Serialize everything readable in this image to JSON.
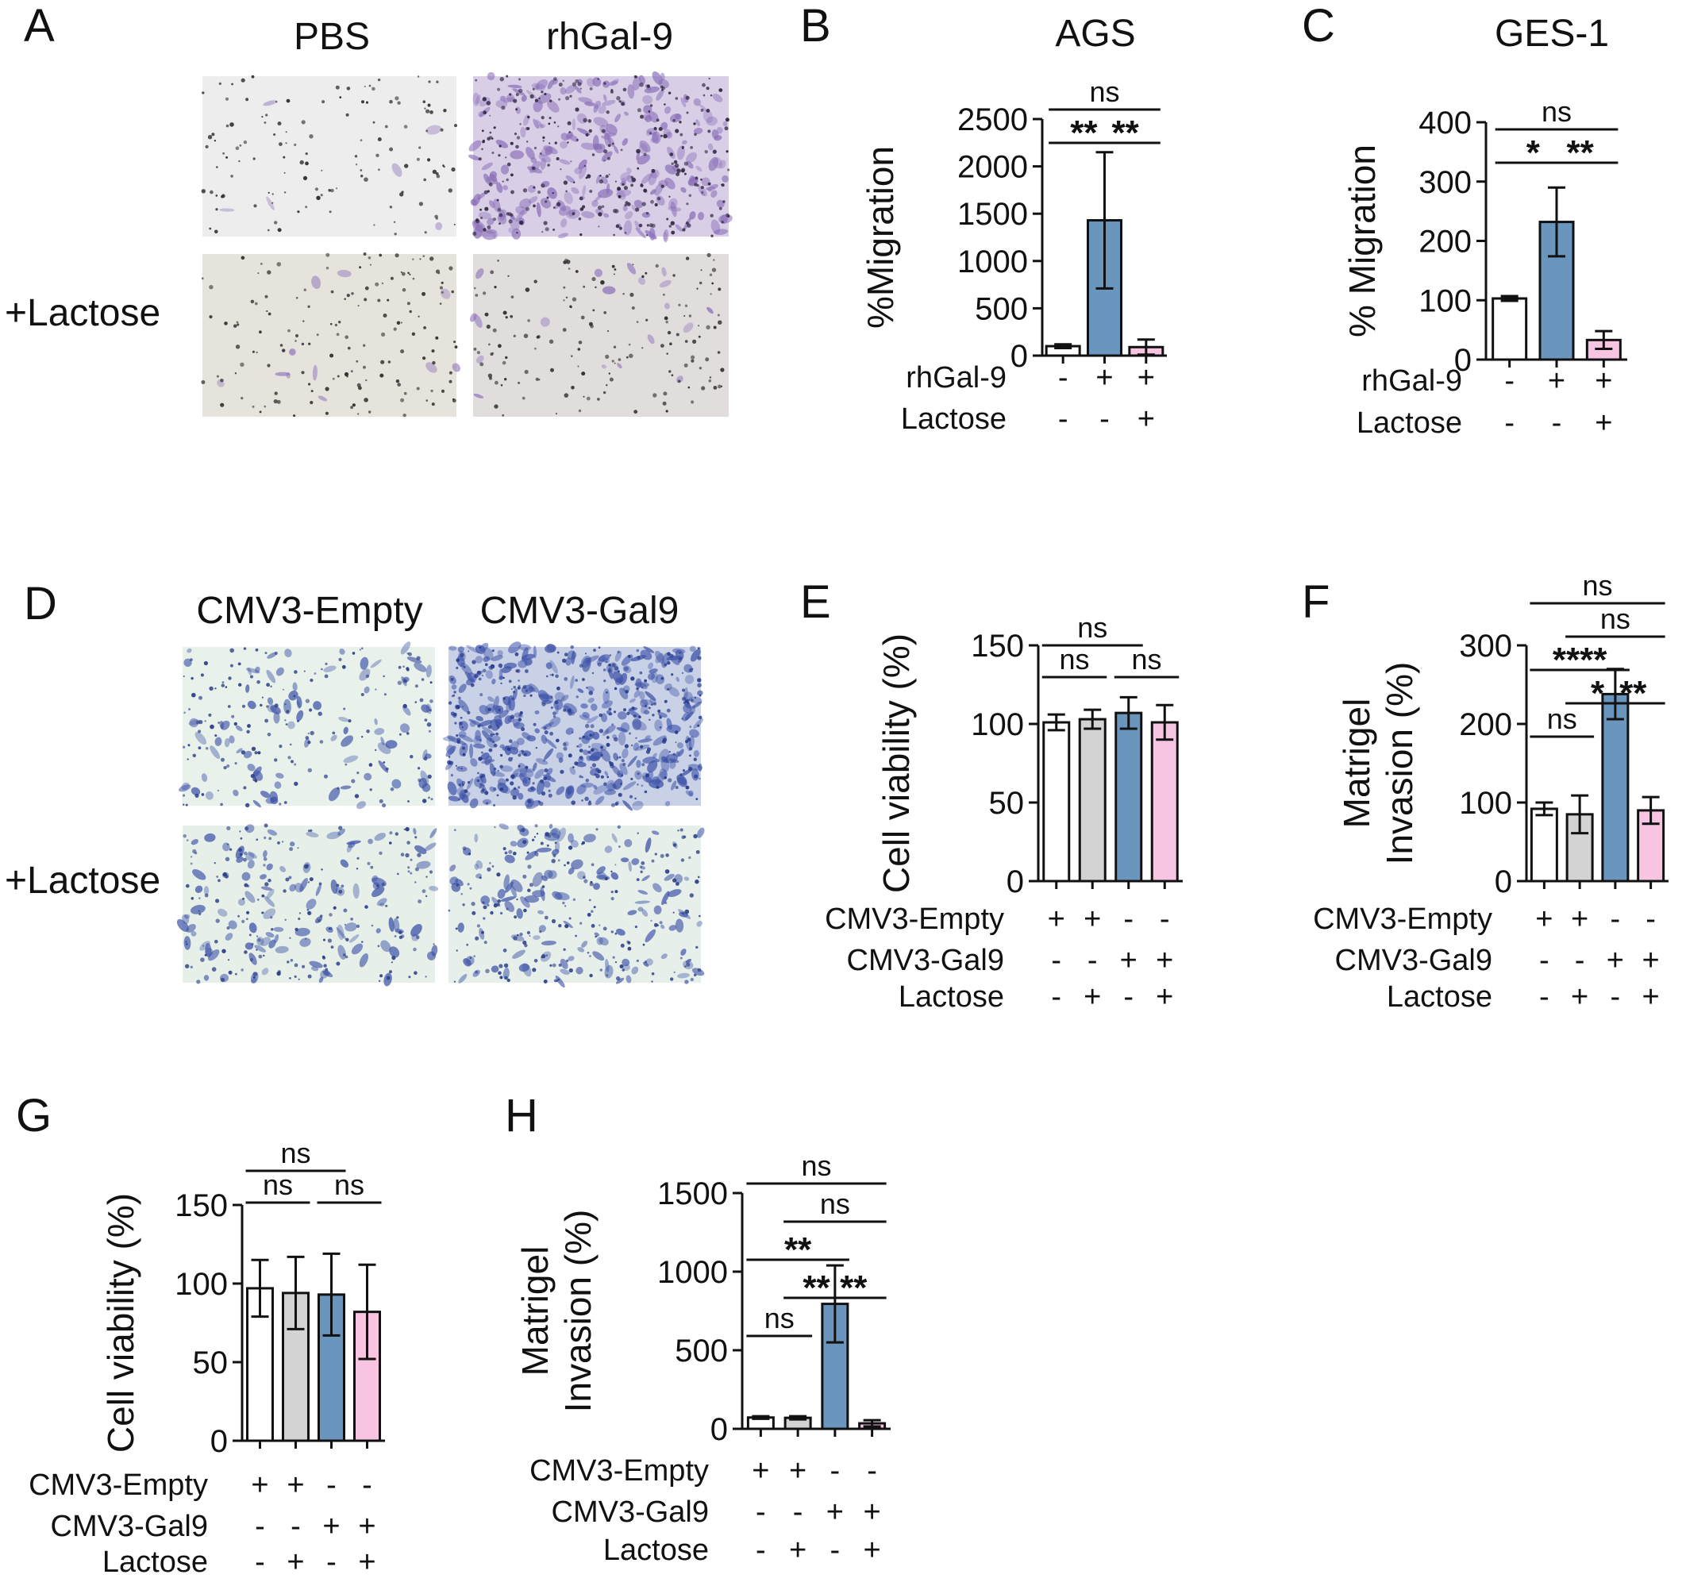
{
  "colors": {
    "white_bar": "#ffffff",
    "gray_bar": "#d3d3d3",
    "blue_bar": "#6a95bd",
    "pink_bar": "#f7c4e2",
    "axis": "#111111",
    "crystal_violet": "#8a6fb8",
    "stain_blue": "#3d52a8"
  },
  "micrographs": [
    {
      "panel": "A",
      "column_titles": [
        "PBS",
        "rhGal-9"
      ],
      "row_labels": [
        "",
        "+Lactose"
      ]
    },
    {
      "panel": "D",
      "column_titles": [
        "CMV3-Empty",
        "CMV3-Gal9"
      ],
      "row_labels": [
        "",
        "+Lactose"
      ]
    }
  ],
  "chart_data": [
    {
      "panel": "B",
      "type": "bar",
      "title": "AGS",
      "ylabel": "%Migration",
      "ylim": [
        0,
        2500
      ],
      "yticks": [
        0,
        500,
        1000,
        1500,
        2000,
        2500
      ],
      "values": [
        100,
        1430,
        90
      ],
      "errors": [
        20,
        720,
        80
      ],
      "colors": [
        "#ffffff",
        "#6a95bd",
        "#f7c4e2"
      ],
      "condition_rows": [
        {
          "label": "rhGal-9",
          "signs": [
            "-",
            "+",
            "+"
          ]
        },
        {
          "label": "Lactose",
          "signs": [
            "-",
            "-",
            "+"
          ]
        }
      ],
      "significance": [
        {
          "from": 0,
          "to": 1,
          "level": 0,
          "text": "**"
        },
        {
          "from": 1,
          "to": 2,
          "level": 0,
          "text": "**"
        },
        {
          "from": 0,
          "to": 2,
          "level": 1,
          "text": "ns"
        }
      ]
    },
    {
      "panel": "C",
      "type": "bar",
      "title": "GES-1",
      "ylabel": "% Migration",
      "ylim": [
        0,
        400
      ],
      "yticks": [
        0,
        100,
        200,
        300,
        400
      ],
      "values": [
        103,
        232,
        33
      ],
      "errors": [
        4,
        58,
        15
      ],
      "colors": [
        "#ffffff",
        "#6a95bd",
        "#f7c4e2"
      ],
      "condition_rows": [
        {
          "label": "rhGal-9",
          "signs": [
            "-",
            "+",
            "+"
          ]
        },
        {
          "label": "Lactose",
          "signs": [
            "-",
            "-",
            "+"
          ]
        }
      ],
      "significance": [
        {
          "from": 0,
          "to": 1,
          "level": 0,
          "text": "*"
        },
        {
          "from": 1,
          "to": 2,
          "level": 0,
          "text": "**"
        },
        {
          "from": 0,
          "to": 2,
          "level": 1,
          "text": "ns"
        }
      ]
    },
    {
      "panel": "E",
      "type": "bar",
      "title": "",
      "ylabel": "Cell viability (%)",
      "ylim": [
        0,
        150
      ],
      "yticks": [
        0,
        50,
        100,
        150
      ],
      "values": [
        101,
        103,
        107,
        101
      ],
      "errors": [
        5,
        6,
        10,
        11
      ],
      "colors": [
        "#ffffff",
        "#d3d3d3",
        "#6a95bd",
        "#f7c4e2"
      ],
      "condition_rows": [
        {
          "label": "CMV3-Empty",
          "signs": [
            "+",
            "+",
            "-",
            "-"
          ]
        },
        {
          "label": "CMV3-Gal9",
          "signs": [
            "-",
            "-",
            "+",
            "+"
          ]
        },
        {
          "label": "Lactose",
          "signs": [
            "-",
            "+",
            "-",
            "+"
          ]
        }
      ],
      "significance": [
        {
          "from": 0,
          "to": 1,
          "level": 0,
          "text": "ns"
        },
        {
          "from": 2,
          "to": 3,
          "level": 0,
          "text": "ns"
        },
        {
          "from": 0,
          "to": 2,
          "level": 1,
          "text": "ns"
        }
      ]
    },
    {
      "panel": "F",
      "type": "bar",
      "title": "",
      "ylabel": "Matrigel Invasion (%)",
      "ylabel_lines": [
        "Matrigel",
        "Invasion (%)"
      ],
      "ylim": [
        0,
        300
      ],
      "yticks": [
        0,
        100,
        200,
        300
      ],
      "values": [
        92,
        85,
        238,
        90
      ],
      "errors": [
        8,
        24,
        32,
        17
      ],
      "colors": [
        "#ffffff",
        "#d3d3d3",
        "#6a95bd",
        "#f7c4e2"
      ],
      "condition_rows": [
        {
          "label": "CMV3-Empty",
          "signs": [
            "+",
            "+",
            "-",
            "-"
          ]
        },
        {
          "label": "CMV3-Gal9",
          "signs": [
            "-",
            "-",
            "+",
            "+"
          ]
        },
        {
          "label": "Lactose",
          "signs": [
            "-",
            "+",
            "-",
            "+"
          ]
        }
      ],
      "significance": [
        {
          "from": 0,
          "to": 1,
          "level": 0,
          "text": "ns"
        },
        {
          "from": 1,
          "to": 2,
          "level": 1,
          "text": "*"
        },
        {
          "from": 2,
          "to": 3,
          "level": 1,
          "text": "**"
        },
        {
          "from": 0,
          "to": 2,
          "level": 2,
          "text": "****"
        },
        {
          "from": 1,
          "to": 3,
          "level": 3,
          "text": "ns"
        },
        {
          "from": 0,
          "to": 3,
          "level": 4,
          "text": "ns"
        }
      ]
    },
    {
      "panel": "G",
      "type": "bar",
      "title": "",
      "ylabel": "Cell viability (%)",
      "ylim": [
        0,
        150
      ],
      "yticks": [
        0,
        50,
        100,
        150
      ],
      "values": [
        97,
        94,
        93,
        82
      ],
      "errors": [
        18,
        23,
        26,
        30
      ],
      "colors": [
        "#ffffff",
        "#d3d3d3",
        "#6a95bd",
        "#f7c4e2"
      ],
      "condition_rows": [
        {
          "label": "CMV3-Empty",
          "signs": [
            "+",
            "+",
            "-",
            "-"
          ]
        },
        {
          "label": "CMV3-Gal9",
          "signs": [
            "-",
            "-",
            "+",
            "+"
          ]
        },
        {
          "label": "Lactose",
          "signs": [
            "-",
            "+",
            "-",
            "+"
          ]
        }
      ],
      "significance": [
        {
          "from": 0,
          "to": 1,
          "level": 0,
          "text": "ns"
        },
        {
          "from": 2,
          "to": 3,
          "level": 0,
          "text": "ns"
        },
        {
          "from": 0,
          "to": 2,
          "level": 1,
          "text": "ns"
        }
      ]
    },
    {
      "panel": "H",
      "type": "bar",
      "title": "",
      "ylabel": "Matrigel Invasion (%)",
      "ylabel_lines": [
        "Matrigel",
        "Invasion (%)"
      ],
      "ylim": [
        0,
        1500
      ],
      "yticks": [
        0,
        500,
        1000,
        1500
      ],
      "values": [
        72,
        70,
        795,
        35
      ],
      "errors": [
        8,
        10,
        245,
        20
      ],
      "colors": [
        "#ffffff",
        "#d3d3d3",
        "#6a95bd",
        "#f7c4e2"
      ],
      "condition_rows": [
        {
          "label": "CMV3-Empty",
          "signs": [
            "+",
            "+",
            "-",
            "-"
          ]
        },
        {
          "label": "CMV3-Gal9",
          "signs": [
            "-",
            "-",
            "+",
            "+"
          ]
        },
        {
          "label": "Lactose",
          "signs": [
            "-",
            "+",
            "-",
            "+"
          ]
        }
      ],
      "significance": [
        {
          "from": 0,
          "to": 1,
          "level": 0,
          "text": "ns"
        },
        {
          "from": 1,
          "to": 2,
          "level": 1,
          "text": "**"
        },
        {
          "from": 2,
          "to": 3,
          "level": 1,
          "text": "**"
        },
        {
          "from": 0,
          "to": 2,
          "level": 2,
          "text": "**"
        },
        {
          "from": 1,
          "to": 3,
          "level": 3,
          "text": "ns"
        },
        {
          "from": 0,
          "to": 3,
          "level": 4,
          "text": "ns"
        }
      ]
    }
  ]
}
